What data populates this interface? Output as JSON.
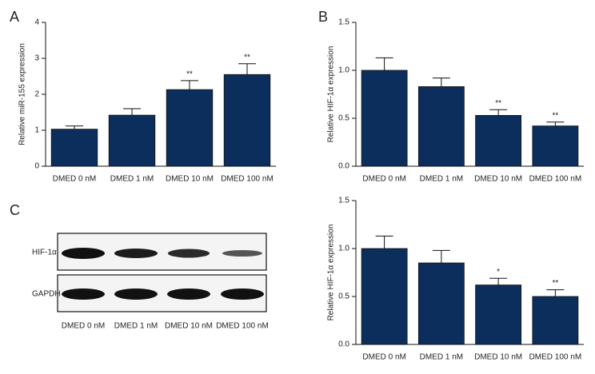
{
  "chart_data": [
    {
      "type": "bar",
      "panel": "A",
      "ylabel": "Relative miR-155 expression",
      "categories": [
        "DMED 0 nM",
        "DMED 1 nM",
        "DMED 10 nM",
        "DMED 100 nM"
      ],
      "values": [
        1.03,
        1.42,
        2.13,
        2.55
      ],
      "errors": [
        0.09,
        0.18,
        0.25,
        0.3
      ],
      "annotations": [
        null,
        null,
        "**",
        "**"
      ],
      "color": "#0b2e5c",
      "ylim": [
        0,
        4
      ],
      "yticks": [
        0,
        1,
        2,
        3,
        4
      ]
    },
    {
      "type": "bar",
      "panel": "B",
      "ylabel": "Relative HIF-1α expression",
      "categories": [
        "DMED 0 nM",
        "DMED 1 nM",
        "DMED 10 nM",
        "DMED 100 nM"
      ],
      "values": [
        1.0,
        0.83,
        0.53,
        0.42
      ],
      "errors": [
        0.13,
        0.09,
        0.06,
        0.04
      ],
      "annotations": [
        null,
        null,
        "**",
        "**"
      ],
      "color": "#0b2e5c",
      "ylim": [
        0,
        1.5
      ],
      "yticks": [
        {
          "value": 0,
          "label": "0.0"
        },
        {
          "value": 0.5,
          "label": "0.5"
        },
        {
          "value": 1,
          "label": "1.0"
        },
        {
          "value": 1.5,
          "label": "1.5"
        }
      ]
    },
    {
      "type": "bar",
      "ylabel": "Relative HIF-1α expression",
      "categories": [
        "DMED 0 nM",
        "DMED 1 nM",
        "DMED 10 nM",
        "DMED 100 nM"
      ],
      "values": [
        1.0,
        0.85,
        0.62,
        0.5
      ],
      "errors": [
        0.13,
        0.13,
        0.07,
        0.07
      ],
      "annotations": [
        null,
        null,
        "*",
        "**"
      ],
      "color": "#0b2e5c",
      "ylim": [
        0,
        1.5
      ],
      "yticks": [
        {
          "value": 0,
          "label": "0.0"
        },
        {
          "value": 0.5,
          "label": "0.5"
        },
        {
          "value": 1,
          "label": "1.0"
        },
        {
          "value": 1.5,
          "label": "1.5"
        }
      ]
    }
  ],
  "blot": {
    "panel": "C",
    "rows": [
      "HIF-1α",
      "GAPDH"
    ],
    "lanes": [
      "DMED 0 nM",
      "DMED 1 nM",
      "DMED 10 nM",
      "DMED 100 nM"
    ]
  }
}
